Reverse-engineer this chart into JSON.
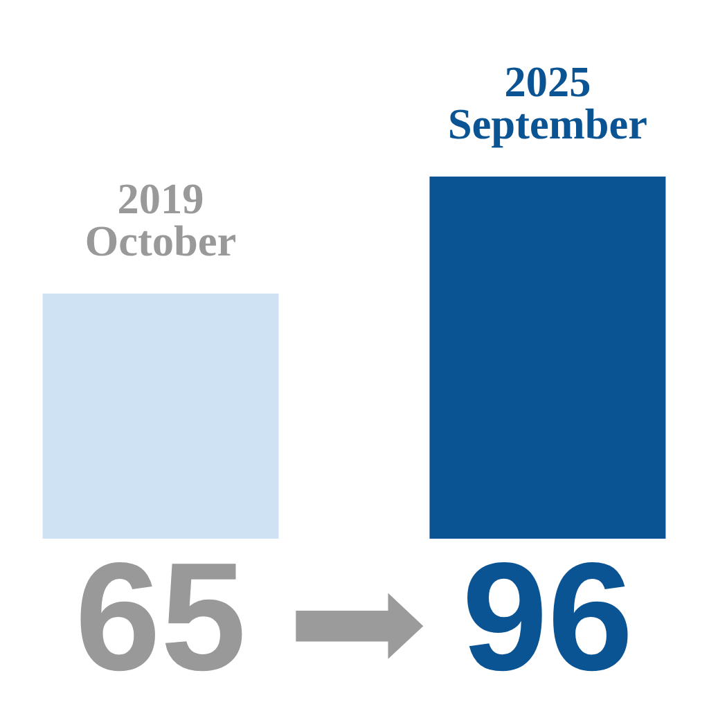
{
  "chart_data": {
    "type": "bar",
    "categories": [
      "2019\nOctober",
      "2025\nSeptember"
    ],
    "values": [
      65,
      96
    ],
    "colors": [
      "#cfe2f3",
      "#0b5494"
    ],
    "data_labels": true
  }
}
